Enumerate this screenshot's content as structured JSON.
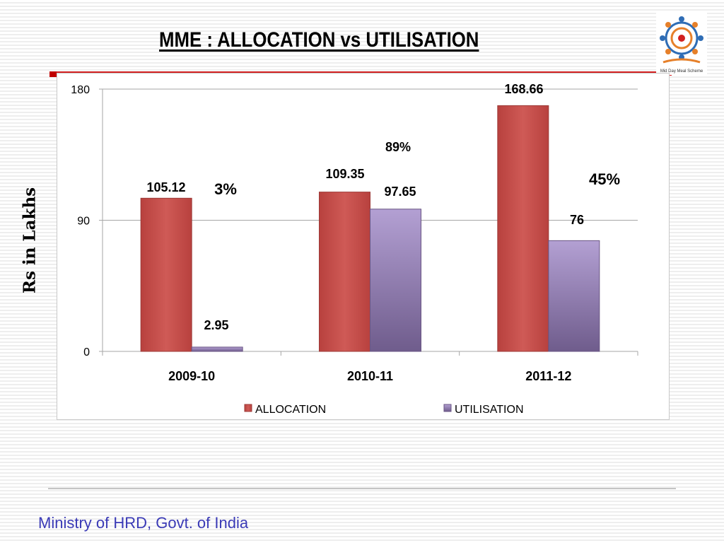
{
  "slide": {
    "title": "MME : ALLOCATION vs UTILISATION",
    "footer": "Ministry of HRD, Govt. of India",
    "logo_caption": "Mid Day Meal Scheme"
  },
  "chart_data": {
    "type": "bar",
    "title": "",
    "ylabel": "Rs in Lakhs",
    "xlabel": "",
    "categories": [
      "2009-10",
      "2010-11",
      "2011-12"
    ],
    "series": [
      {
        "name": "ALLOCATION",
        "values": [
          105.12,
          109.35,
          168.66
        ],
        "labels": [
          "105.12",
          "109.35",
          "168.66"
        ],
        "color": "#c0504d"
      },
      {
        "name": "UTILISATION",
        "values": [
          2.95,
          97.65,
          76
        ],
        "labels": [
          "2.95",
          "97.65",
          "76"
        ],
        "color": "#8064a2"
      }
    ],
    "percent_annotations": [
      "3%",
      "89%",
      "45%"
    ],
    "yticks": [
      0,
      90,
      180
    ],
    "ytick_labels": [
      "0",
      "90",
      "180"
    ],
    "ylim": [
      0,
      180
    ],
    "grid": true,
    "legend": "bottom"
  },
  "colors": {
    "allocation": "#c0504d",
    "utilisation": "#8064a2",
    "footer_text": "#3a3ab6",
    "accent_red": "#d21f1f"
  }
}
